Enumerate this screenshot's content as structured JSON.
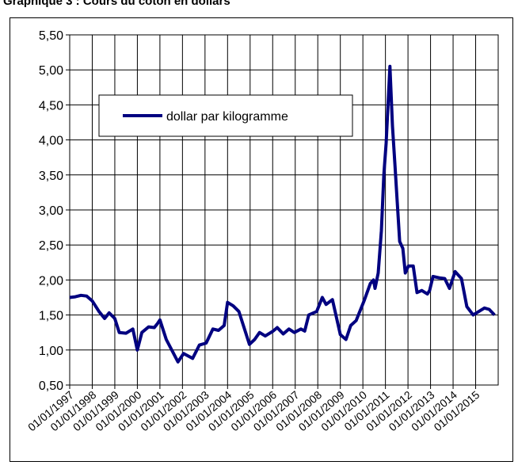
{
  "chart_data": {
    "type": "line",
    "title": "Graphique 3 : Cours du coton en dollars",
    "x": [
      1997.0,
      1997.25,
      1997.5,
      1997.75,
      1998.0,
      1998.3,
      1998.55,
      1998.75,
      1999.0,
      1999.2,
      1999.5,
      1999.8,
      2000.0,
      2000.2,
      2000.5,
      2000.75,
      2000.9,
      2001.0,
      2001.28,
      2001.8,
      2002.05,
      2002.45,
      2002.75,
      2003.05,
      2003.35,
      2003.6,
      2003.85,
      2004.0,
      2004.25,
      2004.5,
      2004.8,
      2004.97,
      2005.2,
      2005.42,
      2005.67,
      2006.02,
      2006.2,
      2006.47,
      2006.72,
      2006.96,
      2007.25,
      2007.42,
      2007.6,
      2007.95,
      2008.2,
      2008.37,
      2008.65,
      2009.0,
      2009.25,
      2009.46,
      2009.7,
      2010.05,
      2010.33,
      2010.47,
      2010.54,
      2010.68,
      2010.82,
      2010.93,
      2011.03,
      2011.2,
      2011.31,
      2011.42,
      2011.63,
      2011.77,
      2011.88,
      2012.02,
      2012.23,
      2012.4,
      2012.61,
      2012.86,
      2012.96,
      2013.11,
      2013.39,
      2013.63,
      2013.84,
      2014.09,
      2014.37,
      2014.61,
      2014.89,
      2015.14,
      2015.39,
      2015.6,
      2015.84
    ],
    "series": [
      {
        "name": "dollar par kilogramme",
        "color": "#000080",
        "values": [
          1.75,
          1.76,
          1.78,
          1.77,
          1.7,
          1.55,
          1.45,
          1.53,
          1.45,
          1.25,
          1.24,
          1.3,
          1.0,
          1.25,
          1.33,
          1.32,
          1.38,
          1.43,
          1.15,
          0.83,
          0.95,
          0.88,
          1.07,
          1.1,
          1.3,
          1.28,
          1.35,
          1.68,
          1.63,
          1.55,
          1.25,
          1.08,
          1.15,
          1.25,
          1.2,
          1.27,
          1.32,
          1.23,
          1.3,
          1.25,
          1.3,
          1.27,
          1.5,
          1.55,
          1.75,
          1.65,
          1.72,
          1.22,
          1.15,
          1.35,
          1.42,
          1.7,
          1.95,
          2.0,
          1.88,
          2.1,
          2.7,
          3.5,
          3.95,
          5.05,
          4.2,
          3.65,
          2.55,
          2.45,
          2.1,
          2.2,
          2.2,
          1.82,
          1.85,
          1.8,
          1.85,
          2.05,
          2.03,
          2.02,
          1.88,
          2.12,
          2.02,
          1.62,
          1.5,
          1.55,
          1.6,
          1.58,
          1.5
        ]
      }
    ],
    "xlim": [
      1997,
      2016
    ],
    "xticks": [
      {
        "value": 1997,
        "label": "01/01/1997"
      },
      {
        "value": 1998,
        "label": "01/01/1998"
      },
      {
        "value": 1999,
        "label": "01/01/1999"
      },
      {
        "value": 2000,
        "label": "01/01/2000"
      },
      {
        "value": 2001,
        "label": "01/01/2001"
      },
      {
        "value": 2002,
        "label": "01/01/2002"
      },
      {
        "value": 2003,
        "label": "01/01/2003"
      },
      {
        "value": 2004,
        "label": "01/01/2004"
      },
      {
        "value": 2005,
        "label": "01/01/2005"
      },
      {
        "value": 2006,
        "label": "01/01/2006"
      },
      {
        "value": 2007,
        "label": "01/01/2007"
      },
      {
        "value": 2008,
        "label": "01/01/2008"
      },
      {
        "value": 2009,
        "label": "01/01/2009"
      },
      {
        "value": 2010,
        "label": "01/01/2010"
      },
      {
        "value": 2011,
        "label": "01/01/2011"
      },
      {
        "value": 2012,
        "label": "01/01/2012"
      },
      {
        "value": 2013,
        "label": "01/01/2013"
      },
      {
        "value": 2014,
        "label": "01/01/2014"
      },
      {
        "value": 2015,
        "label": "01/01/2015"
      }
    ],
    "ylim": [
      0.5,
      5.5
    ],
    "yticks": [
      {
        "value": 0.5,
        "label": "0,50"
      },
      {
        "value": 1.0,
        "label": "1,00"
      },
      {
        "value": 1.5,
        "label": "1,50"
      },
      {
        "value": 2.0,
        "label": "2,00"
      },
      {
        "value": 2.5,
        "label": "2,50"
      },
      {
        "value": 3.0,
        "label": "3,00"
      },
      {
        "value": 3.5,
        "label": "3,50"
      },
      {
        "value": 4.0,
        "label": "4,00"
      },
      {
        "value": 4.5,
        "label": "4,50"
      },
      {
        "value": 5.0,
        "label": "5,00"
      },
      {
        "value": 5.5,
        "label": "5,50"
      }
    ],
    "grid": true,
    "legend": "upper left"
  }
}
